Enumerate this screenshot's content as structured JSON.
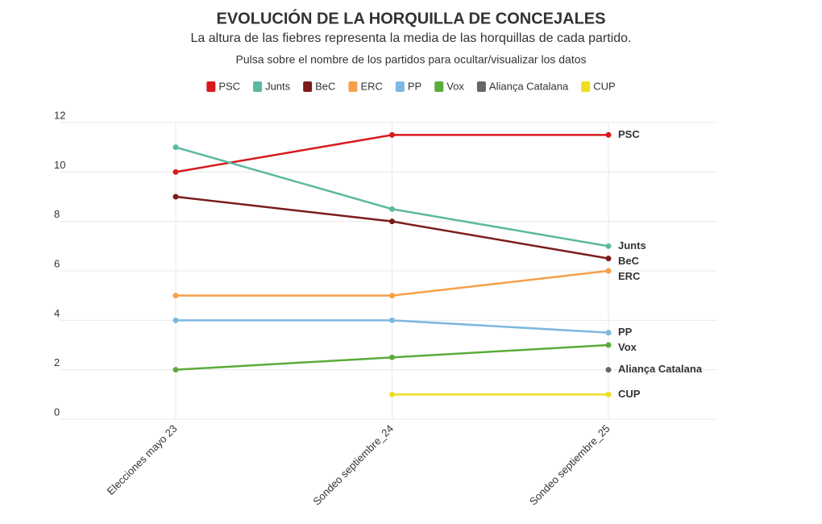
{
  "chart_data": {
    "type": "line",
    "title": "EVOLUCIÓN DE LA HORQUILLA DE CONCEJALES",
    "subtitle": "La altura de las fiebres representa la media de las horquillas de cada partido.",
    "note": "Pulsa sobre el nombre de los partidos para ocultar/visualizar los datos",
    "categories": [
      "Elecciones mayo 23",
      "Sondeo septiembre_24",
      "Sondeo septiembre_25"
    ],
    "series": [
      {
        "name": "PSC",
        "color": "#d7191c",
        "values": [
          10,
          11.5,
          11.5
        ]
      },
      {
        "name": "Junts",
        "color": "#5cb8a0",
        "values": [
          11,
          8.5,
          7
        ]
      },
      {
        "name": "BeC",
        "color": "#7b1c1c",
        "values": [
          9,
          8,
          6.5
        ]
      },
      {
        "name": "ERC",
        "color": "#f5a04a",
        "values": [
          5,
          5,
          6
        ]
      },
      {
        "name": "PP",
        "color": "#7db8e0",
        "values": [
          4,
          4,
          3.5
        ]
      },
      {
        "name": "Vox",
        "color": "#5aab3a",
        "values": [
          2,
          2.5,
          3
        ]
      },
      {
        "name": "Aliança Catalana",
        "color": "#666666",
        "values": [
          null,
          null,
          2
        ]
      },
      {
        "name": "CUP",
        "color": "#f0dc20",
        "values": [
          null,
          1,
          1
        ]
      }
    ],
    "ylim": [
      0,
      12
    ],
    "yticks": [
      0,
      2,
      4,
      6,
      8,
      10,
      12
    ],
    "grid": true
  }
}
